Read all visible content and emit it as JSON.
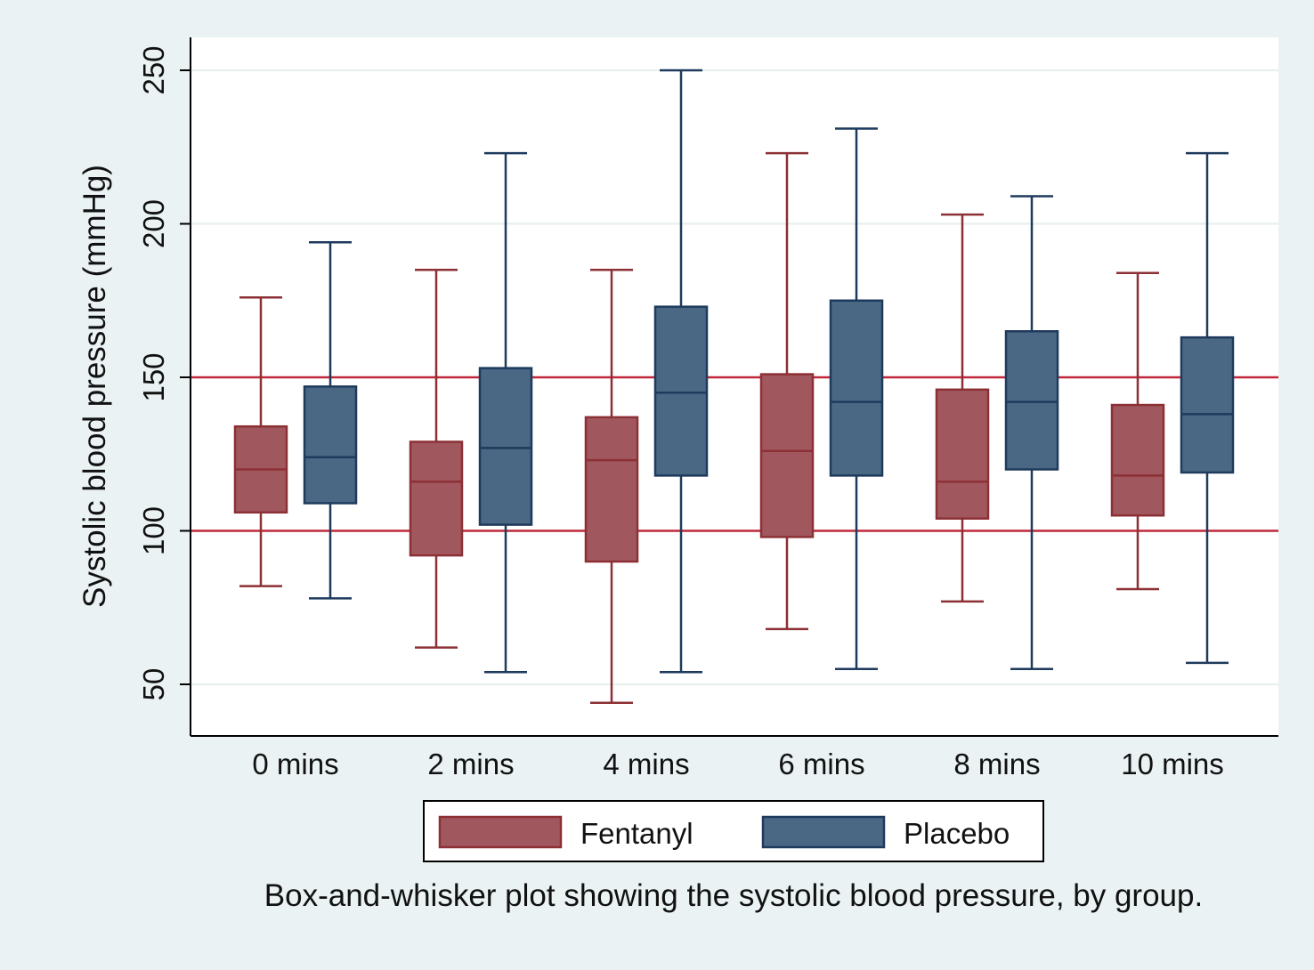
{
  "chart_data": {
    "type": "box",
    "ylabel": "Systolic blood pressure (mmHg)",
    "xlabel": "",
    "caption": "Box-and-whisker plot showing the systolic blood pressure, by group.",
    "categories": [
      "0 mins",
      "2 mins",
      "4 mins",
      "6 mins",
      "8 mins",
      "10 mins"
    ],
    "yticks": [
      50,
      100,
      150,
      200,
      250
    ],
    "ylim": [
      39,
      261
    ],
    "grid": true,
    "legend_position": "bottom",
    "reference_lines": [
      {
        "value": 100,
        "color": "#c0283a"
      },
      {
        "value": 150,
        "color": "#c0283a"
      }
    ],
    "series": [
      {
        "name": "Fentanyl",
        "color": "#a0585e",
        "stroke": "#8c3035",
        "boxes": [
          {
            "min": 82,
            "q1": 106,
            "median": 120,
            "q3": 134,
            "max": 176
          },
          {
            "min": 62,
            "q1": 92,
            "median": 116,
            "q3": 129,
            "max": 185
          },
          {
            "min": 44,
            "q1": 90,
            "median": 123,
            "q3": 137,
            "max": 185
          },
          {
            "min": 68,
            "q1": 98,
            "median": 126,
            "q3": 151,
            "max": 223
          },
          {
            "min": 77,
            "q1": 104,
            "median": 116,
            "q3": 146,
            "max": 203
          },
          {
            "min": 81,
            "q1": 105,
            "median": 118,
            "q3": 141,
            "max": 184
          }
        ]
      },
      {
        "name": "Placebo",
        "color": "#4a6884",
        "stroke": "#1e3a5c",
        "boxes": [
          {
            "min": 78,
            "q1": 109,
            "median": 124,
            "q3": 147,
            "max": 194
          },
          {
            "min": 54,
            "q1": 102,
            "median": 127,
            "q3": 153,
            "max": 223
          },
          {
            "min": 54,
            "q1": 118,
            "median": 145,
            "q3": 173,
            "max": 250
          },
          {
            "min": 55,
            "q1": 118,
            "median": 142,
            "q3": 175,
            "max": 231
          },
          {
            "min": 55,
            "q1": 120,
            "median": 142,
            "q3": 165,
            "max": 209
          },
          {
            "min": 57,
            "q1": 119,
            "median": 138,
            "q3": 163,
            "max": 223
          }
        ]
      }
    ]
  }
}
